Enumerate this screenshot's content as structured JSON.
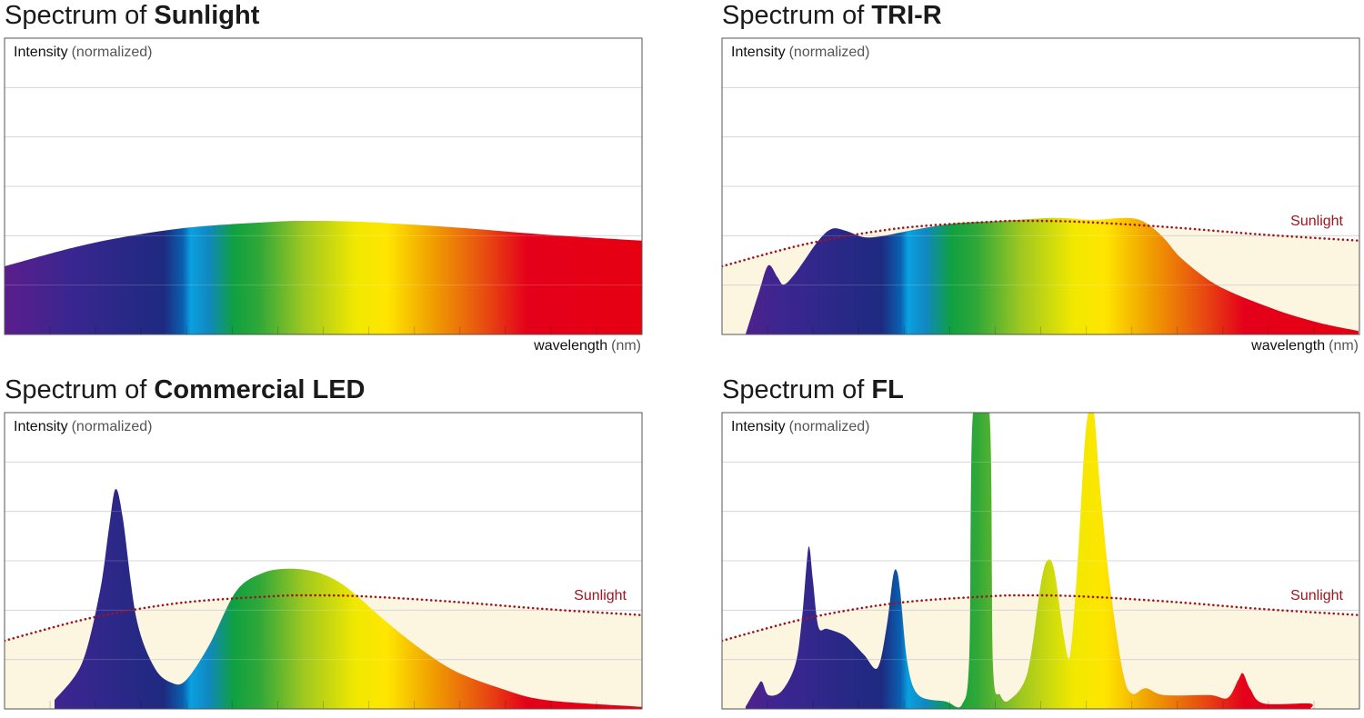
{
  "colors": {
    "reference_fill": "#fcf5df",
    "reference_line": "#a0141e",
    "grid": "#cfcfcf",
    "frame": "#555555"
  },
  "spectrum_gradient": [
    {
      "nm": 380,
      "color": "#5b1e8c"
    },
    {
      "nm": 420,
      "color": "#3a2690"
    },
    {
      "nm": 480,
      "color": "#1e2a80"
    },
    {
      "nm": 492,
      "color": "#0a60b0"
    },
    {
      "nm": 497,
      "color": "#0aa0e0"
    },
    {
      "nm": 508,
      "color": "#1088c0"
    },
    {
      "nm": 524,
      "color": "#10a040"
    },
    {
      "nm": 540,
      "color": "#30a838"
    },
    {
      "nm": 568,
      "color": "#a0c820"
    },
    {
      "nm": 600,
      "color": "#f0e800"
    },
    {
      "nm": 620,
      "color": "#ffe600"
    },
    {
      "nm": 648,
      "color": "#f0a000"
    },
    {
      "nm": 680,
      "color": "#e85010"
    },
    {
      "nm": 708,
      "color": "#e4001a"
    },
    {
      "nm": 780,
      "color": "#e60012"
    }
  ],
  "chart_data": [
    {
      "type": "area",
      "title_prefix": "Spectrum of ",
      "title_bold": "Sunlight",
      "ylabel": "Intensity",
      "ylabel_unit": "(normalized)",
      "xlabel": "wavelength",
      "xlabel_unit": "(nm)",
      "xlim": [
        380,
        780
      ],
      "ylim": [
        0,
        6
      ],
      "grid": true,
      "series": {
        "x": [
          380,
          434,
          491,
          548,
          571,
          605,
          662,
          720,
          780
        ],
        "y": [
          1.38,
          1.84,
          2.15,
          2.28,
          2.3,
          2.28,
          2.17,
          2.02,
          1.9
        ]
      }
    },
    {
      "type": "area",
      "title_prefix": "Spectrum of ",
      "title_bold": "TRI-R",
      "ylabel": "Intensity",
      "ylabel_unit": "(normalized)",
      "xlabel": "wavelength",
      "xlabel_unit": "(nm)",
      "reference_label": "Sunlight",
      "xlim": [
        380,
        780
      ],
      "ylim": [
        0,
        6
      ],
      "grid": true,
      "series": {
        "x": [
          394.8,
          403.4,
          409.1,
          414.8,
          418.8,
          426.2,
          440.5,
          449.0,
          457.6,
          469.0,
          480.4,
          497.5,
          526.1,
          554.6,
          588.8,
          611.7,
          634.5,
          645.9,
          657.3,
          668.7,
          691.6,
          725.8,
          754.3,
          779.4
        ],
        "y": [
          0,
          0.88,
          1.4,
          1.16,
          1.01,
          1.25,
          1.9,
          2.14,
          2.1,
          1.97,
          1.99,
          2.1,
          2.25,
          2.3,
          2.36,
          2.32,
          2.36,
          2.26,
          1.95,
          1.53,
          0.98,
          0.52,
          0.24,
          0.07
        ]
      }
    },
    {
      "type": "area",
      "title_prefix": "Spectrum of ",
      "title_bold": "Commercial LED",
      "ylabel": "Intensity",
      "ylabel_unit": "(normalized)",
      "reference_label": "Sunlight",
      "xlim": [
        380,
        780
      ],
      "ylim": [
        0,
        6
      ],
      "grid": true,
      "series": {
        "x": [
          411.4,
          428.5,
          439.9,
          445.6,
          449.6,
          454.2,
          462.7,
          474.2,
          485.6,
          494.1,
          508.4,
          525.5,
          542.6,
          559.7,
          576.9,
          594.0,
          616.8,
          639.6,
          662.5,
          691.0,
          719.5,
          780
        ],
        "y": [
          0.18,
          0.92,
          2.39,
          3.68,
          4.45,
          3.87,
          1.84,
          0.83,
          0.52,
          0.59,
          1.29,
          2.39,
          2.76,
          2.84,
          2.76,
          2.48,
          1.84,
          1.25,
          0.77,
          0.42,
          0.18,
          0.04
        ]
      }
    },
    {
      "type": "area",
      "title_prefix": "Spectrum of ",
      "title_bold": "FL",
      "ylabel": "Intensity",
      "ylabel_unit": "(normalized)",
      "reference_label": "Sunlight",
      "xlim": [
        380,
        780
      ],
      "ylim": [
        0,
        6
      ],
      "grid": true,
      "series": {
        "x": [
          394.8,
          402.3,
          405.1,
          409.1,
          417.7,
          426.2,
          430.2,
          433.1,
          434.8,
          437.1,
          440.5,
          446.2,
          457.6,
          469.0,
          477.6,
          483.3,
          487.3,
          489.6,
          491.8,
          496.4,
          503.3,
          520.4,
          530.6,
          535.2,
          537.5,
          547.8,
          550.0,
          554.6,
          560.3,
          571.7,
          580.3,
          584.8,
          588.8,
          594.5,
          598.5,
          603.1,
          607.1,
          609.9,
          613.4,
          617.4,
          623.1,
          631.6,
          637.3,
          645.9,
          657.3,
          685.8,
          697.2,
          704.0,
          706.9,
          711.5,
          720.0,
          748.6,
          749.1
        ],
        "y": [
          0.04,
          0.46,
          0.55,
          0.28,
          0.37,
          0.92,
          1.84,
          2.94,
          3.28,
          2.58,
          1.66,
          1.62,
          1.47,
          1.1,
          0.83,
          1.66,
          2.67,
          2.8,
          2.39,
          0.92,
          0.28,
          0.15,
          0.09,
          1.1,
          6.0,
          6.0,
          0.92,
          0.28,
          0.18,
          0.74,
          2.58,
          3.02,
          2.76,
          1.47,
          1.1,
          2.94,
          5.15,
          6.0,
          6.0,
          4.42,
          2.58,
          0.74,
          0.31,
          0.42,
          0.28,
          0.28,
          0.22,
          0.59,
          0.72,
          0.4,
          0.11,
          0.11,
          0
        ]
      }
    }
  ]
}
